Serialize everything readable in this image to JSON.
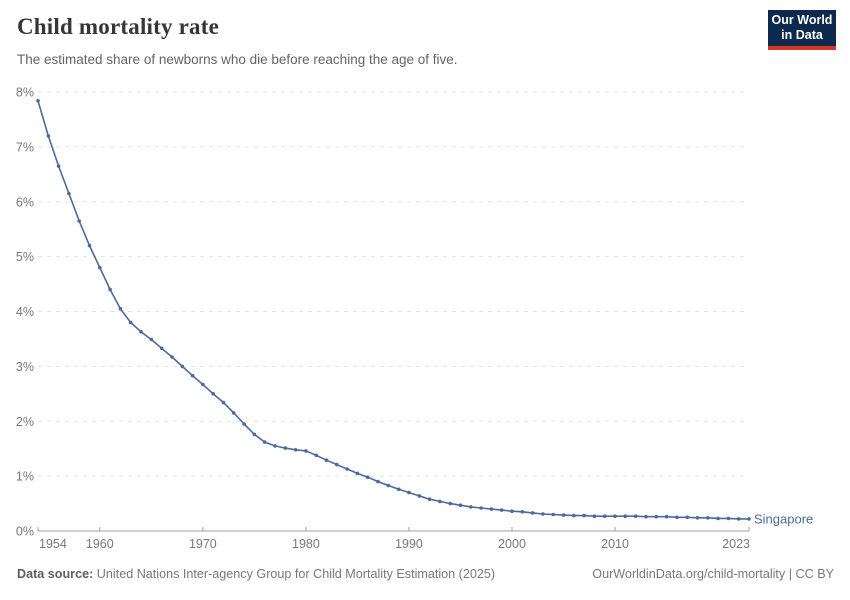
{
  "header": {
    "title": "Child mortality rate",
    "subtitle": "The estimated share of newborns who die before reaching the age of five."
  },
  "logo": {
    "line1": "Our World",
    "line2": "in Data",
    "bg_color": "#0d2a4d",
    "accent_color": "#d7342a"
  },
  "footer": {
    "datasource_label": "Data source:",
    "datasource_text": " United Nations Inter-agency Group for Child Mortality Estimation (2025)",
    "link_text": "OurWorldinData.org/child-mortality",
    "license_sep": " | ",
    "license": "CC BY"
  },
  "chart_data": {
    "type": "line",
    "title": "Child mortality rate",
    "subtitle": "The estimated share of newborns who die before reaching the age of five.",
    "entity": "Singapore",
    "unit": "%",
    "line_color": "#4C6A9C",
    "grid": "horizontal-dashed",
    "legend_position": "right-of-line-end",
    "x_range": [
      1954,
      2023
    ],
    "ylim": [
      0,
      8
    ],
    "yticks": [
      0,
      1,
      2,
      3,
      4,
      5,
      6,
      7,
      8
    ],
    "ytick_labels": [
      "0%",
      "1%",
      "2%",
      "3%",
      "4%",
      "5%",
      "6%",
      "7%",
      "8%"
    ],
    "xticks": [
      1954,
      1960,
      1970,
      1980,
      1990,
      2000,
      2010,
      2023
    ],
    "xtick_labels": [
      "1954",
      "1960",
      "1970",
      "1980",
      "1990",
      "2000",
      "2010",
      "2023"
    ],
    "years": [
      1954,
      1955,
      1956,
      1957,
      1958,
      1959,
      1960,
      1961,
      1962,
      1963,
      1964,
      1965,
      1966,
      1967,
      1968,
      1969,
      1970,
      1971,
      1972,
      1973,
      1974,
      1975,
      1976,
      1977,
      1978,
      1979,
      1980,
      1981,
      1982,
      1983,
      1984,
      1985,
      1986,
      1987,
      1988,
      1989,
      1990,
      1991,
      1992,
      1993,
      1994,
      1995,
      1996,
      1997,
      1998,
      1999,
      2000,
      2001,
      2002,
      2003,
      2004,
      2005,
      2006,
      2007,
      2008,
      2009,
      2010,
      2011,
      2012,
      2013,
      2014,
      2015,
      2016,
      2017,
      2018,
      2019,
      2020,
      2021,
      2022,
      2023
    ],
    "values": [
      7.84,
      7.2,
      6.65,
      6.15,
      5.65,
      5.2,
      4.8,
      4.4,
      4.05,
      3.8,
      3.63,
      3.49,
      3.33,
      3.17,
      3.0,
      2.83,
      2.67,
      2.5,
      2.34,
      2.15,
      1.95,
      1.76,
      1.62,
      1.55,
      1.51,
      1.48,
      1.46,
      1.38,
      1.29,
      1.21,
      1.13,
      1.05,
      0.98,
      0.9,
      0.83,
      0.76,
      0.7,
      0.64,
      0.58,
      0.54,
      0.5,
      0.47,
      0.44,
      0.42,
      0.4,
      0.38,
      0.36,
      0.35,
      0.33,
      0.31,
      0.3,
      0.29,
      0.28,
      0.28,
      0.27,
      0.27,
      0.27,
      0.27,
      0.27,
      0.26,
      0.26,
      0.26,
      0.25,
      0.25,
      0.24,
      0.24,
      0.23,
      0.23,
      0.22,
      0.22
    ]
  },
  "style": {
    "grid_color": "#e2e2e2",
    "axis_color": "#a1a1a1",
    "tick_label_color": "#787878"
  }
}
